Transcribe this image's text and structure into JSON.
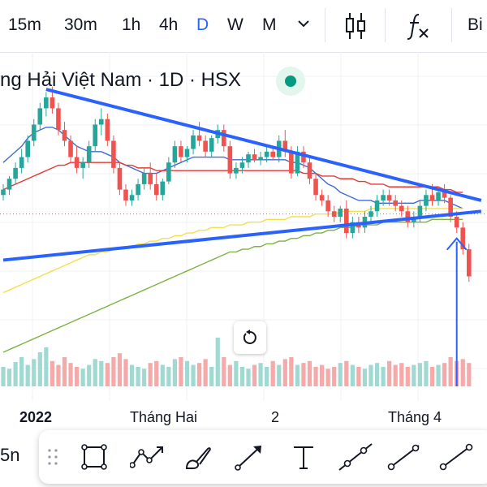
{
  "toolbar": {
    "intervals": [
      "15m",
      "30m",
      "1h",
      "4h",
      "D",
      "W",
      "M"
    ],
    "active_interval": "D",
    "icons": [
      "chevron-down-icon",
      "candlestick-icon",
      "indicators-fx-icon"
    ],
    "partial_right_label": "Bi"
  },
  "legend": {
    "title": "ng Hải Việt Nam · 1D · HSX",
    "status": "market-open-dot"
  },
  "time_axis": {
    "ticks": [
      "2022",
      "Tháng Hai",
      "2",
      "Tháng 4"
    ]
  },
  "left_chip": "5n",
  "drawing_tools": [
    "grip-icon",
    "rectangle-icon",
    "path-icon",
    "brush-icon",
    "arrow-icon",
    "text-icon",
    "trend-line-icon",
    "ray-icon",
    "segment-icon"
  ],
  "colors": {
    "up": "#26a69a",
    "down": "#ef5350",
    "trendline": "#2962ff",
    "ma_short": "#3f6bd6",
    "ma_mid": "#e53935",
    "ma_long1": "#f2e04d",
    "ma_long2": "#7cb342",
    "accent": "#2962ff"
  },
  "chart_data": {
    "type": "candlestick",
    "title": "ng Hải Việt Nam · 1D · HSX",
    "x_ticks": [
      "2022",
      "Tháng Hai",
      "2",
      "Tháng 4"
    ],
    "price_range": [
      0,
      100
    ],
    "reference_level": 51,
    "candles": [
      {
        "o": 58,
        "h": 62,
        "l": 56,
        "c": 60
      },
      {
        "o": 60,
        "h": 65,
        "l": 58,
        "c": 64
      },
      {
        "o": 64,
        "h": 70,
        "l": 62,
        "c": 68
      },
      {
        "o": 68,
        "h": 75,
        "l": 66,
        "c": 72
      },
      {
        "o": 72,
        "h": 80,
        "l": 70,
        "c": 78
      },
      {
        "o": 78,
        "h": 86,
        "l": 76,
        "c": 84
      },
      {
        "o": 84,
        "h": 92,
        "l": 82,
        "c": 90
      },
      {
        "o": 90,
        "h": 96,
        "l": 87,
        "c": 94
      },
      {
        "o": 94,
        "h": 98,
        "l": 88,
        "c": 90
      },
      {
        "o": 90,
        "h": 92,
        "l": 80,
        "c": 82
      },
      {
        "o": 82,
        "h": 85,
        "l": 76,
        "c": 78
      },
      {
        "o": 78,
        "h": 80,
        "l": 70,
        "c": 72
      },
      {
        "o": 72,
        "h": 76,
        "l": 66,
        "c": 68
      },
      {
        "o": 68,
        "h": 72,
        "l": 64,
        "c": 70
      },
      {
        "o": 70,
        "h": 78,
        "l": 68,
        "c": 76
      },
      {
        "o": 76,
        "h": 86,
        "l": 74,
        "c": 84
      },
      {
        "o": 84,
        "h": 90,
        "l": 80,
        "c": 86
      },
      {
        "o": 86,
        "h": 88,
        "l": 76,
        "c": 78
      },
      {
        "o": 78,
        "h": 80,
        "l": 66,
        "c": 68
      },
      {
        "o": 68,
        "h": 70,
        "l": 58,
        "c": 60
      },
      {
        "o": 60,
        "h": 62,
        "l": 54,
        "c": 56
      },
      {
        "o": 56,
        "h": 60,
        "l": 54,
        "c": 58
      },
      {
        "o": 58,
        "h": 64,
        "l": 56,
        "c": 62
      },
      {
        "o": 62,
        "h": 68,
        "l": 60,
        "c": 66
      },
      {
        "o": 66,
        "h": 70,
        "l": 60,
        "c": 62
      },
      {
        "o": 62,
        "h": 66,
        "l": 56,
        "c": 58
      },
      {
        "o": 58,
        "h": 64,
        "l": 56,
        "c": 63
      },
      {
        "o": 63,
        "h": 72,
        "l": 62,
        "c": 70
      },
      {
        "o": 70,
        "h": 78,
        "l": 68,
        "c": 76
      },
      {
        "o": 76,
        "h": 78,
        "l": 70,
        "c": 72
      },
      {
        "o": 72,
        "h": 76,
        "l": 70,
        "c": 75
      },
      {
        "o": 75,
        "h": 82,
        "l": 73,
        "c": 80
      },
      {
        "o": 80,
        "h": 85,
        "l": 76,
        "c": 78
      },
      {
        "o": 78,
        "h": 80,
        "l": 72,
        "c": 74
      },
      {
        "o": 74,
        "h": 80,
        "l": 72,
        "c": 79
      },
      {
        "o": 79,
        "h": 84,
        "l": 77,
        "c": 82
      },
      {
        "o": 82,
        "h": 84,
        "l": 74,
        "c": 76
      },
      {
        "o": 76,
        "h": 78,
        "l": 64,
        "c": 66
      },
      {
        "o": 66,
        "h": 70,
        "l": 64,
        "c": 68
      },
      {
        "o": 68,
        "h": 72,
        "l": 66,
        "c": 70
      },
      {
        "o": 70,
        "h": 74,
        "l": 68,
        "c": 73
      },
      {
        "o": 73,
        "h": 75,
        "l": 70,
        "c": 71
      },
      {
        "o": 71,
        "h": 74,
        "l": 69,
        "c": 72
      },
      {
        "o": 72,
        "h": 76,
        "l": 70,
        "c": 74
      },
      {
        "o": 74,
        "h": 76,
        "l": 71,
        "c": 72
      },
      {
        "o": 72,
        "h": 80,
        "l": 70,
        "c": 78
      },
      {
        "o": 78,
        "h": 82,
        "l": 72,
        "c": 74
      },
      {
        "o": 74,
        "h": 76,
        "l": 64,
        "c": 66
      },
      {
        "o": 66,
        "h": 76,
        "l": 65,
        "c": 74
      },
      {
        "o": 74,
        "h": 76,
        "l": 68,
        "c": 70
      },
      {
        "o": 70,
        "h": 72,
        "l": 62,
        "c": 64
      },
      {
        "o": 64,
        "h": 66,
        "l": 56,
        "c": 58
      },
      {
        "o": 58,
        "h": 60,
        "l": 54,
        "c": 56
      },
      {
        "o": 56,
        "h": 58,
        "l": 50,
        "c": 52
      },
      {
        "o": 52,
        "h": 54,
        "l": 48,
        "c": 50
      },
      {
        "o": 50,
        "h": 54,
        "l": 48,
        "c": 53
      },
      {
        "o": 53,
        "h": 56,
        "l": 42,
        "c": 44
      },
      {
        "o": 44,
        "h": 50,
        "l": 42,
        "c": 48
      },
      {
        "o": 48,
        "h": 50,
        "l": 44,
        "c": 46
      },
      {
        "o": 46,
        "h": 52,
        "l": 44,
        "c": 50
      },
      {
        "o": 50,
        "h": 54,
        "l": 48,
        "c": 52
      },
      {
        "o": 52,
        "h": 58,
        "l": 50,
        "c": 56
      },
      {
        "o": 56,
        "h": 60,
        "l": 54,
        "c": 58
      },
      {
        "o": 58,
        "h": 60,
        "l": 54,
        "c": 56
      },
      {
        "o": 56,
        "h": 58,
        "l": 52,
        "c": 54
      },
      {
        "o": 54,
        "h": 56,
        "l": 50,
        "c": 52
      },
      {
        "o": 52,
        "h": 54,
        "l": 46,
        "c": 48
      },
      {
        "o": 48,
        "h": 52,
        "l": 46,
        "c": 50
      },
      {
        "o": 50,
        "h": 56,
        "l": 48,
        "c": 54
      },
      {
        "o": 54,
        "h": 60,
        "l": 52,
        "c": 58
      },
      {
        "o": 58,
        "h": 62,
        "l": 54,
        "c": 56
      },
      {
        "o": 56,
        "h": 60,
        "l": 54,
        "c": 59
      },
      {
        "o": 59,
        "h": 62,
        "l": 55,
        "c": 57
      },
      {
        "o": 57,
        "h": 58,
        "l": 48,
        "c": 50
      },
      {
        "o": 50,
        "h": 52,
        "l": 44,
        "c": 46
      },
      {
        "o": 46,
        "h": 48,
        "l": 36,
        "c": 38
      },
      {
        "o": 38,
        "h": 40,
        "l": 26,
        "c": 28
      }
    ],
    "volume": [
      20,
      18,
      25,
      30,
      22,
      28,
      35,
      40,
      26,
      22,
      30,
      24,
      20,
      18,
      22,
      28,
      26,
      24,
      30,
      34,
      28,
      22,
      20,
      18,
      24,
      26,
      22,
      20,
      28,
      30,
      26,
      22,
      24,
      28,
      20,
      50,
      30,
      22,
      26,
      20,
      18,
      22,
      24,
      20,
      26,
      22,
      28,
      30,
      22,
      24,
      26,
      20,
      22,
      18,
      20,
      24,
      26,
      22,
      20,
      18,
      22,
      24,
      20,
      26,
      22,
      24,
      20,
      22,
      24,
      26,
      20,
      22,
      24,
      30,
      26,
      28,
      24
    ],
    "moving_averages": [
      {
        "name": "MA20",
        "values": [
          70,
          72,
          74,
          76,
          79,
          81,
          82,
          83,
          83,
          82,
          80,
          78,
          76,
          75,
          74,
          74,
          74,
          73,
          72,
          70,
          69,
          68,
          67,
          66,
          66,
          66,
          67,
          68,
          69,
          70,
          71,
          72,
          72,
          72,
          72,
          72,
          72,
          71,
          71,
          71,
          71,
          71,
          71,
          71,
          71,
          71,
          71,
          70,
          70,
          69,
          68,
          66,
          64,
          62,
          61,
          59,
          58,
          57,
          56,
          56,
          56,
          55,
          55,
          55,
          55,
          55,
          55,
          55,
          56,
          56,
          56,
          56,
          56,
          55,
          54,
          53
        ]
      },
      {
        "name": "MA50",
        "values": [
          60,
          61,
          62,
          63,
          64,
          65,
          66,
          67,
          68,
          69,
          69,
          70,
          70,
          70,
          70,
          70,
          70,
          70,
          70,
          70,
          69,
          69,
          68,
          68,
          68,
          67,
          67,
          67,
          67,
          67,
          67,
          67,
          67,
          67,
          67,
          67,
          67,
          67,
          67,
          67,
          67,
          67,
          67,
          67,
          67,
          67,
          67,
          67,
          67,
          66,
          66,
          66,
          65,
          65,
          65,
          64,
          64,
          64,
          63,
          63,
          62,
          62,
          62,
          61,
          61,
          61,
          61,
          61,
          61,
          61,
          61,
          61,
          60,
          60,
          59,
          59
        ]
      },
      {
        "name": "MA100",
        "values": [
          22,
          23,
          24,
          25,
          26,
          27,
          28,
          29,
          30,
          31,
          32,
          33,
          34,
          35,
          36,
          36,
          37,
          37,
          38,
          38,
          39,
          39,
          40,
          40,
          41,
          41,
          42,
          42,
          43,
          43,
          44,
          44,
          45,
          45,
          46,
          46,
          46,
          47,
          47,
          47,
          48,
          48,
          48,
          49,
          49,
          49,
          49,
          50,
          50,
          50,
          50,
          51,
          51,
          51,
          51,
          52,
          52,
          52,
          52,
          52,
          53,
          53,
          53,
          53,
          53,
          53,
          53,
          53,
          53,
          53,
          53,
          53,
          53,
          53,
          53,
          53
        ]
      },
      {
        "name": "MA200",
        "values": [
          0,
          1,
          2,
          3,
          4,
          5,
          6,
          7,
          8,
          9,
          10,
          11,
          12,
          13,
          14,
          15,
          16,
          17,
          18,
          19,
          20,
          21,
          22,
          23,
          24,
          25,
          26,
          27,
          28,
          29,
          30,
          31,
          32,
          33,
          34,
          35,
          36,
          37,
          37,
          38,
          38,
          39,
          39,
          40,
          40,
          41,
          41,
          42,
          42,
          43,
          43,
          44,
          44,
          45,
          45,
          46,
          46,
          46,
          47,
          47,
          47,
          47,
          48,
          48,
          48,
          48,
          48,
          48,
          48,
          48,
          49,
          49,
          49,
          49,
          49,
          49
        ]
      }
    ],
    "trendlines": [
      {
        "name": "upper-resistance",
        "from": {
          "bar": 7,
          "price": 97
        },
        "to": {
          "bar": 78,
          "price": 56
        }
      },
      {
        "name": "lower-support",
        "from": {
          "bar": 0,
          "price": 34
        },
        "to": {
          "bar": 78,
          "price": 52
        }
      }
    ],
    "annotations": [
      {
        "type": "arrow-up",
        "bar": 74,
        "price_from": 0,
        "price_to": 42
      }
    ]
  }
}
